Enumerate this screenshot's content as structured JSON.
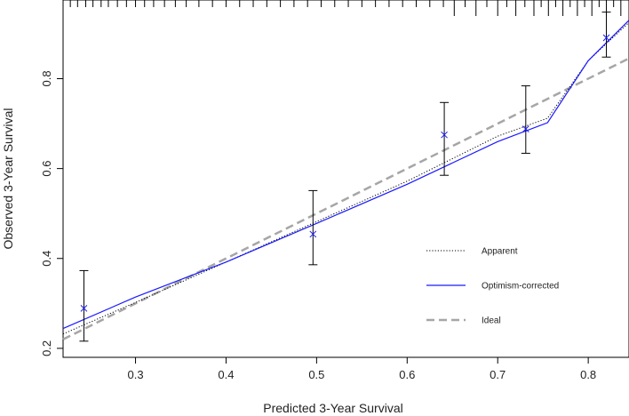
{
  "chart_data": {
    "type": "line",
    "title": "",
    "xlabel": "Predicted 3-Year Survival",
    "ylabel": "Observed 3-Year Survival",
    "xlim": [
      0.22,
      0.845
    ],
    "ylim": [
      0.18,
      0.975
    ],
    "x_ticks": [
      0.3,
      0.4,
      0.5,
      0.6,
      0.7,
      0.8
    ],
    "y_ticks": [
      0.2,
      0.4,
      0.6,
      0.8
    ],
    "x_tick_labels": [
      "0.3",
      "0.4",
      "0.5",
      "0.6",
      "0.7",
      "0.8"
    ],
    "y_tick_labels": [
      "0.2",
      "0.4",
      "0.6",
      "0.8"
    ],
    "grid": false,
    "legend_position": "bottom-right",
    "series": [
      {
        "name": "Apparent",
        "style": "dotted",
        "color": "#000000",
        "x": [
          0.22,
          0.3,
          0.4,
          0.5,
          0.6,
          0.7,
          0.755,
          0.8,
          0.845
        ],
        "y": [
          0.232,
          0.302,
          0.392,
          0.482,
          0.572,
          0.672,
          0.712,
          0.84,
          0.925
        ]
      },
      {
        "name": "Optimism-corrected",
        "style": "solid",
        "color": "#1a1aff",
        "x": [
          0.22,
          0.3,
          0.4,
          0.5,
          0.6,
          0.7,
          0.755,
          0.8,
          0.845
        ],
        "y": [
          0.244,
          0.314,
          0.392,
          0.478,
          0.565,
          0.66,
          0.702,
          0.84,
          0.93
        ]
      },
      {
        "name": "Ideal",
        "style": "dashed",
        "color": "#a6a6a6",
        "x": [
          0.22,
          0.845
        ],
        "y": [
          0.22,
          0.845
        ]
      }
    ],
    "observed_points": [
      {
        "x": 0.243,
        "y": 0.289,
        "lower": 0.216,
        "upper": 0.373
      },
      {
        "x": 0.496,
        "y": 0.454,
        "lower": 0.386,
        "upper": 0.551
      },
      {
        "x": 0.641,
        "y": 0.675,
        "lower": 0.585,
        "upper": 0.747
      },
      {
        "x": 0.731,
        "y": 0.688,
        "lower": 0.634,
        "upper": 0.784
      },
      {
        "x": 0.82,
        "y": 0.891,
        "lower": 0.848,
        "upper": 0.948
      }
    ],
    "marker_color": "#1a1aff",
    "rug_x": [
      0.228,
      0.236,
      0.245,
      0.253,
      0.262,
      0.27,
      0.28,
      0.29,
      0.3,
      0.31,
      0.32,
      0.332,
      0.344,
      0.356,
      0.37,
      0.385,
      0.4,
      0.415,
      0.43,
      0.445,
      0.46,
      0.475,
      0.49,
      0.505,
      0.52,
      0.535,
      0.55,
      0.565,
      0.58,
      0.595,
      0.61,
      0.625,
      0.64,
      0.652,
      0.664,
      0.676,
      0.688,
      0.7,
      0.71,
      0.72,
      0.73,
      0.74,
      0.748,
      0.756,
      0.764,
      0.772,
      0.78,
      0.788,
      0.796,
      0.804,
      0.812,
      0.82,
      0.828,
      0.836
    ],
    "rug_tall_x": [
      0.652,
      0.676,
      0.7,
      0.72,
      0.74,
      0.756,
      0.772,
      0.788,
      0.804,
      0.82,
      0.836
    ]
  }
}
